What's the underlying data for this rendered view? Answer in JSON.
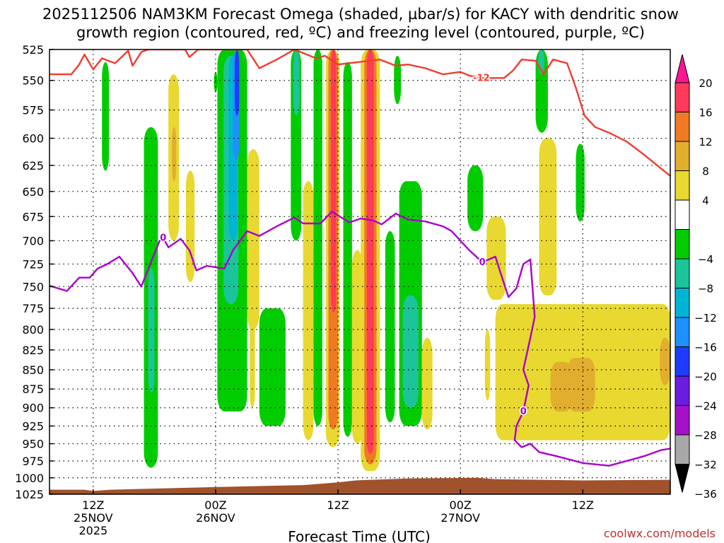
{
  "chart_data": {
    "type": "heatmap",
    "title_line1": "2025112506 NAM3KM Forecast Omega (shaded, µbar/s) for KACY with dendritic snow",
    "title_line2": "growth region (contoured, red, ºC) and freezing level (contoured, purple, ºC)",
    "xlabel": "Forecast Time (UTC)",
    "ylabel_levels": [
      525,
      550,
      575,
      600,
      625,
      650,
      675,
      700,
      725,
      750,
      775,
      800,
      825,
      850,
      875,
      900,
      925,
      950,
      975,
      1000,
      1025
    ],
    "ylim": [
      525,
      1025
    ],
    "xlim_hours": [
      7,
      78
    ],
    "x_ticks": [
      {
        "hour": 12,
        "label1": "12Z",
        "label2": "25NOV",
        "label3": "2025"
      },
      {
        "hour": 26,
        "label1": "00Z",
        "label2": "26NOV",
        "label3": ""
      },
      {
        "hour": 40,
        "label1": "12Z",
        "label2": "",
        "label3": ""
      },
      {
        "hour": 54,
        "label1": "00Z",
        "label2": "27NOV",
        "label3": ""
      },
      {
        "hour": 68,
        "label1": "12Z",
        "label2": "",
        "label3": ""
      }
    ],
    "colorbar": {
      "labels": [
        "20",
        "16",
        "12",
        "8",
        "4",
        "−4",
        "−8",
        "−12",
        "−16",
        "−20",
        "−24",
        "−28",
        "−32",
        "−36"
      ],
      "bins": [
        {
          "min": 16,
          "max": 20,
          "color": "#ff3a5a"
        },
        {
          "min": 12,
          "max": 16,
          "color": "#f07a24"
        },
        {
          "min": 8,
          "max": 12,
          "color": "#e2ae2e"
        },
        {
          "min": 4,
          "max": 8,
          "color": "#e8d830"
        },
        {
          "min": -4,
          "max": 4,
          "color": "#ffffff"
        },
        {
          "min": -8,
          "max": -4,
          "color": "#00cc00"
        },
        {
          "min": -12,
          "max": -8,
          "color": "#1cc49a"
        },
        {
          "min": -16,
          "max": -12,
          "color": "#00b4d6"
        },
        {
          "min": -20,
          "max": -16,
          "color": "#1e90ff"
        },
        {
          "min": -24,
          "max": -20,
          "color": "#1e3cff"
        },
        {
          "min": -28,
          "max": -24,
          "color": "#6a1ce0"
        },
        {
          "min": -32,
          "max": -28,
          "color": "#a410c8"
        },
        {
          "min": -36,
          "max": -32,
          "color": "#a8a8a8"
        }
      ],
      "top_arrow_color": "#ff1493",
      "bottom_arrow_color": "#000000"
    },
    "omega_regions": [
      {
        "t0": 13.0,
        "t1": 13.8,
        "p0": 535,
        "p1": 630,
        "value": -6
      },
      {
        "t0": 17.8,
        "t1": 19.4,
        "p0": 590,
        "p1": 985,
        "value": -6
      },
      {
        "t0": 18.3,
        "t1": 19.0,
        "p0": 730,
        "p1": 880,
        "value": -10
      },
      {
        "t0": 20.6,
        "t1": 21.8,
        "p0": 545,
        "p1": 700,
        "value": 5
      },
      {
        "t0": 21.0,
        "t1": 21.5,
        "p0": 590,
        "p1": 640,
        "value": 9
      },
      {
        "t0": 22.6,
        "t1": 23.6,
        "p0": 630,
        "p1": 745,
        "value": 5
      },
      {
        "t0": 25.8,
        "t1": 26.2,
        "p0": 543,
        "p1": 560,
        "value": -6
      },
      {
        "t0": 26.2,
        "t1": 29.6,
        "p0": 525,
        "p1": 905,
        "value": -6
      },
      {
        "t0": 26.9,
        "t1": 28.6,
        "p0": 530,
        "p1": 770,
        "value": -10
      },
      {
        "t0": 27.5,
        "t1": 28.5,
        "p0": 530,
        "p1": 700,
        "value": -14
      },
      {
        "t0": 28.0,
        "t1": 28.7,
        "p0": 525,
        "p1": 620,
        "value": -18
      },
      {
        "t0": 28.2,
        "t1": 28.7,
        "p0": 525,
        "p1": 580,
        "value": -24
      },
      {
        "t0": 29.6,
        "t1": 31.0,
        "p0": 610,
        "p1": 800,
        "value": 5
      },
      {
        "t0": 29.9,
        "t1": 30.5,
        "p0": 780,
        "p1": 900,
        "value": 5
      },
      {
        "t0": 31.0,
        "t1": 34.0,
        "p0": 775,
        "p1": 925,
        "value": -6
      },
      {
        "t0": 34.6,
        "t1": 35.8,
        "p0": 525,
        "p1": 700,
        "value": -6
      },
      {
        "t0": 34.9,
        "t1": 35.6,
        "p0": 525,
        "p1": 580,
        "value": -12
      },
      {
        "t0": 36.0,
        "t1": 37.2,
        "p0": 640,
        "p1": 945,
        "value": 5
      },
      {
        "t0": 37.2,
        "t1": 38.2,
        "p0": 525,
        "p1": 925,
        "value": -6
      },
      {
        "t0": 38.6,
        "t1": 40.2,
        "p0": 525,
        "p1": 955,
        "value": 6
      },
      {
        "t0": 38.9,
        "t1": 40.0,
        "p0": 525,
        "p1": 930,
        "value": 14
      },
      {
        "t0": 39.2,
        "t1": 39.8,
        "p0": 525,
        "p1": 780,
        "value": 18
      },
      {
        "t0": 40.6,
        "t1": 41.6,
        "p0": 535,
        "p1": 940,
        "value": -6
      },
      {
        "t0": 41.6,
        "t1": 42.8,
        "p0": 710,
        "p1": 950,
        "value": 5
      },
      {
        "t0": 42.6,
        "t1": 44.8,
        "p0": 525,
        "p1": 990,
        "value": 6
      },
      {
        "t0": 43.0,
        "t1": 44.4,
        "p0": 525,
        "p1": 980,
        "value": 14
      },
      {
        "t0": 43.3,
        "t1": 44.1,
        "p0": 525,
        "p1": 965,
        "value": 18
      },
      {
        "t0": 45.4,
        "t1": 46.5,
        "p0": 690,
        "p1": 920,
        "value": -6
      },
      {
        "t0": 46.4,
        "t1": 47.2,
        "p0": 530,
        "p1": 570,
        "value": -6
      },
      {
        "t0": 47.0,
        "t1": 49.6,
        "p0": 640,
        "p1": 925,
        "value": -6
      },
      {
        "t0": 47.4,
        "t1": 49.2,
        "p0": 760,
        "p1": 900,
        "value": -10
      },
      {
        "t0": 49.6,
        "t1": 50.8,
        "p0": 810,
        "p1": 930,
        "value": 5
      },
      {
        "t0": 54.8,
        "t1": 56.6,
        "p0": 625,
        "p1": 690,
        "value": -6
      },
      {
        "t0": 56.8,
        "t1": 57.4,
        "p0": 800,
        "p1": 890,
        "value": 5
      },
      {
        "t0": 57.0,
        "t1": 59.2,
        "p0": 675,
        "p1": 765,
        "value": 5
      },
      {
        "t0": 58.0,
        "t1": 78.0,
        "p0": 770,
        "p1": 945,
        "value": 5
      },
      {
        "t0": 62.6,
        "t1": 64.0,
        "p0": 525,
        "p1": 595,
        "value": -6
      },
      {
        "t0": 62.9,
        "t1": 63.6,
        "p0": 525,
        "p1": 545,
        "value": -10
      },
      {
        "t0": 63.0,
        "t1": 65.0,
        "p0": 600,
        "p1": 760,
        "value": 5
      },
      {
        "t0": 64.3,
        "t1": 66.8,
        "p0": 840,
        "p1": 905,
        "value": 9
      },
      {
        "t0": 66.2,
        "t1": 69.4,
        "p0": 835,
        "p1": 905,
        "value": 9
      },
      {
        "t0": 67.2,
        "t1": 68.2,
        "p0": 605,
        "p1": 680,
        "value": -6
      },
      {
        "t0": 76.8,
        "t1": 78.0,
        "p0": 810,
        "p1": 870,
        "value": 9
      }
    ],
    "dgz_contour": {
      "label": "-12",
      "color": "#f03c2e",
      "points": [
        [
          7.0,
          545
        ],
        [
          9.5,
          545
        ],
        [
          10.4,
          537
        ],
        [
          11.0,
          529
        ],
        [
          12.0,
          541
        ],
        [
          13.0,
          532
        ],
        [
          14.5,
          536
        ],
        [
          16.0,
          526
        ],
        [
          16.5,
          538
        ],
        [
          17.5,
          527
        ],
        [
          18.3,
          525
        ],
        [
          22.5,
          525
        ],
        [
          23.0,
          531
        ],
        [
          24.0,
          525
        ],
        [
          29.6,
          525
        ],
        [
          31.0,
          540
        ],
        [
          33.0,
          533
        ],
        [
          35.0,
          525
        ],
        [
          37.5,
          532
        ],
        [
          38.5,
          530
        ],
        [
          40.0,
          537
        ],
        [
          44.8,
          533
        ],
        [
          46.6,
          538
        ],
        [
          48.0,
          537
        ],
        [
          50.0,
          540
        ],
        [
          52.0,
          545
        ],
        [
          54.0,
          543
        ],
        [
          55.0,
          546
        ],
        [
          56.4,
          548
        ],
        [
          59.0,
          548
        ],
        [
          60.0,
          542
        ],
        [
          61.0,
          533
        ],
        [
          62.6,
          534
        ],
        [
          63.5,
          545
        ],
        [
          64.6,
          533
        ],
        [
          66.2,
          536
        ],
        [
          67.2,
          556
        ],
        [
          68.2,
          580
        ],
        [
          69.4,
          590
        ],
        [
          71.0,
          595
        ],
        [
          73.0,
          603
        ],
        [
          75.0,
          615
        ],
        [
          76.5,
          625
        ],
        [
          78.0,
          635
        ]
      ]
    },
    "freezing_contour": {
      "label": "0",
      "color": "#aa00cc",
      "points": [
        [
          7.0,
          749
        ],
        [
          9.0,
          755
        ],
        [
          10.4,
          740
        ],
        [
          11.6,
          740
        ],
        [
          12.5,
          730
        ],
        [
          13.6,
          725
        ],
        [
          15.0,
          717
        ],
        [
          16.5,
          735
        ],
        [
          17.5,
          750
        ],
        [
          18.6,
          723
        ],
        [
          19.6,
          700
        ],
        [
          20.0,
          697
        ],
        [
          20.6,
          707
        ],
        [
          22.0,
          698
        ],
        [
          23.0,
          710
        ],
        [
          23.8,
          732
        ],
        [
          25.0,
          727
        ],
        [
          27.0,
          730
        ],
        [
          28.0,
          710
        ],
        [
          29.6,
          690
        ],
        [
          31.0,
          695
        ],
        [
          33.0,
          685
        ],
        [
          35.0,
          676
        ],
        [
          36.0,
          682
        ],
        [
          38.0,
          682
        ],
        [
          39.3,
          670
        ],
        [
          41.3,
          681
        ],
        [
          42.6,
          677
        ],
        [
          44.0,
          679
        ],
        [
          45.0,
          683
        ],
        [
          46.6,
          672
        ],
        [
          48.0,
          678
        ],
        [
          50.0,
          680
        ],
        [
          52.0,
          685
        ],
        [
          53.0,
          690
        ],
        [
          55.0,
          710
        ],
        [
          56.5,
          723
        ],
        [
          58.0,
          717
        ],
        [
          58.6,
          735
        ],
        [
          59.5,
          762
        ],
        [
          60.4,
          752
        ],
        [
          61.2,
          725
        ],
        [
          62.0,
          720
        ],
        [
          62.5,
          785
        ],
        [
          62.0,
          810
        ],
        [
          61.2,
          850
        ],
        [
          61.8,
          870
        ],
        [
          61.2,
          905
        ],
        [
          60.4,
          925
        ],
        [
          60.2,
          945
        ],
        [
          61.0,
          955
        ],
        [
          62.0,
          950
        ],
        [
          63.0,
          962
        ],
        [
          65.0,
          968
        ],
        [
          68.0,
          978
        ],
        [
          71.0,
          982
        ],
        [
          73.0,
          975
        ],
        [
          75.0,
          968
        ],
        [
          77.0,
          959
        ],
        [
          78.0,
          957
        ]
      ]
    },
    "terrain": {
      "color": "#a0522d",
      "top_hpa": [
        [
          7.0,
          1018
        ],
        [
          11.0,
          1018
        ],
        [
          12.0,
          1020
        ],
        [
          14.0,
          1018
        ],
        [
          26.0,
          1014
        ],
        [
          36.0,
          1011
        ],
        [
          40.0,
          1007
        ],
        [
          42.0,
          1004
        ],
        [
          48.0,
          1001
        ],
        [
          56.0,
          1000
        ],
        [
          58.0,
          1002
        ],
        [
          68.0,
          1004
        ],
        [
          78.0,
          1003
        ]
      ]
    }
  },
  "credit": "coolwx.com/models"
}
